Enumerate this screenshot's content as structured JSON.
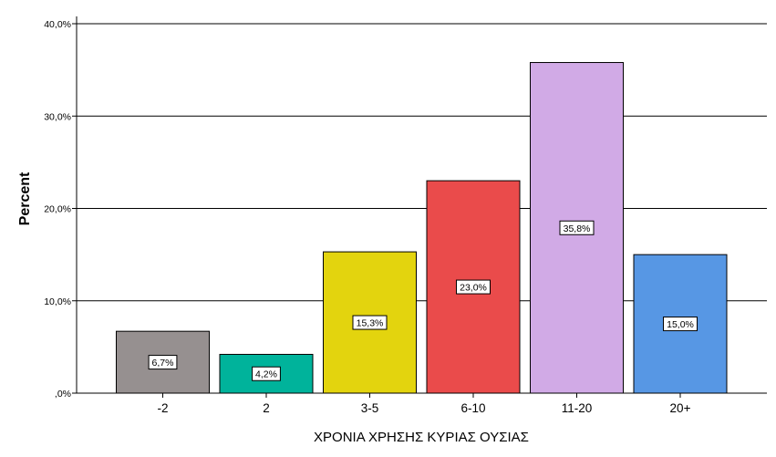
{
  "chart_data": {
    "type": "bar",
    "categories": [
      "-2",
      "2",
      "3-5",
      "6-10",
      "11-20",
      "20+"
    ],
    "values": [
      6.7,
      4.2,
      15.3,
      23.0,
      35.8,
      15.0
    ],
    "data_labels": [
      "6,7%",
      "4,2%",
      "15,3%",
      "23,0%",
      "35,8%",
      "15,0%"
    ],
    "colors": [
      "#969090",
      "#00b39b",
      "#e3d40e",
      "#ea4b4b",
      "#d1aae6",
      "#5797e4"
    ],
    "yticks": [
      0,
      10,
      20,
      30,
      40
    ],
    "ytick_labels": [
      ",0%",
      "10,0%",
      "20,0%",
      "30,0%",
      "40,0%"
    ],
    "ylim": [
      0,
      40
    ],
    "xlabel": "ΧΡΟΝΙΑ ΧΡΗΣΗΣ ΚΥΡΙΑΣ ΟΥΣΙΑΣ",
    "ylabel": "Percent",
    "grid": true
  }
}
